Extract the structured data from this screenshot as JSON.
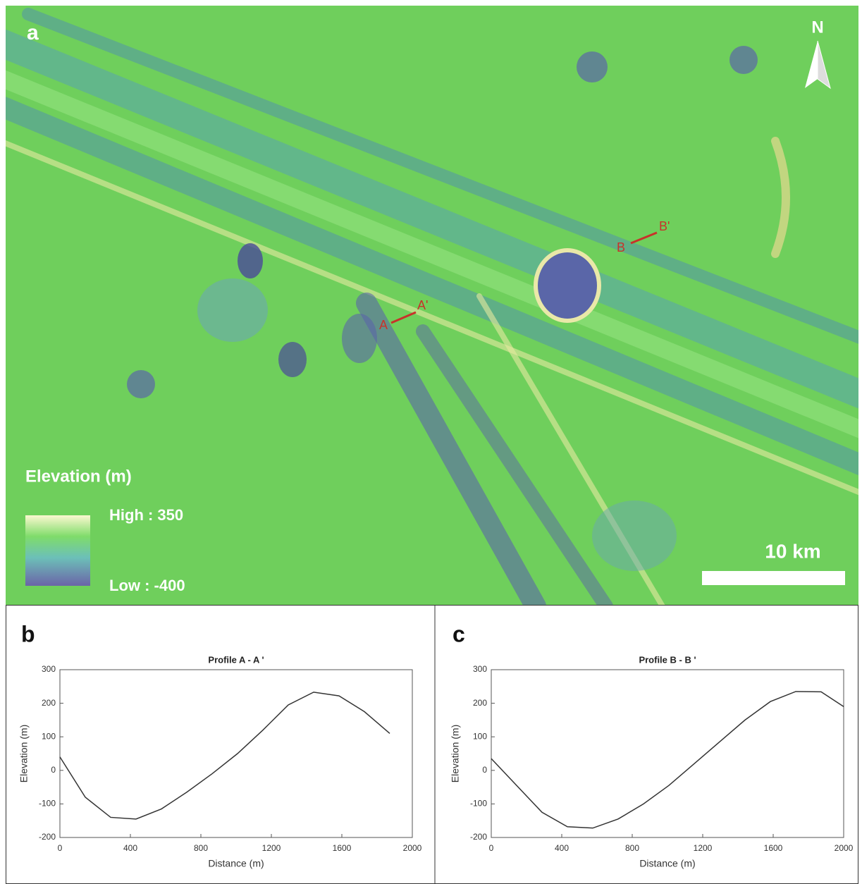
{
  "map": {
    "panel_label": "a",
    "north": "N",
    "legend_title": "Elevation (m)",
    "legend_high": "High : 350",
    "legend_low": "Low : -400",
    "scale_bar": "10 km",
    "profile_a_start": "A",
    "profile_a_end": "A'",
    "profile_b_start": "B",
    "profile_b_end": "B'"
  },
  "chart_data": [
    {
      "type": "line",
      "panel_label": "b",
      "title": "Profile A - A '",
      "x_label": "Distance (m)",
      "y_label": "Elevation (m)",
      "color": "#333333",
      "x": [
        0,
        144,
        288,
        432,
        576,
        720,
        864,
        1008,
        1152,
        1296,
        1440,
        1584,
        1728,
        1872
      ],
      "values": [
        40,
        -80,
        -140,
        -145,
        -115,
        -65,
        -10,
        50,
        120,
        195,
        233,
        222,
        175,
        110
      ],
      "xlim": [
        0,
        2000
      ],
      "xticks": [
        0,
        400,
        800,
        1200,
        1600,
        2000
      ],
      "ylim": [
        -200,
        300
      ],
      "yticks": [
        -200,
        -100,
        0,
        100,
        200,
        300
      ]
    },
    {
      "type": "line",
      "panel_label": "c",
      "title": "Profile B - B '",
      "x_label": "Distance (m)",
      "y_label": "Elevation (m)",
      "color": "#333333",
      "x": [
        0,
        144,
        288,
        432,
        576,
        720,
        864,
        1008,
        1152,
        1296,
        1440,
        1584,
        1728,
        1872,
        2000
      ],
      "values": [
        35,
        -45,
        -125,
        -168,
        -172,
        -145,
        -100,
        -45,
        20,
        85,
        150,
        205,
        235,
        234,
        190
      ],
      "xlim": [
        0,
        2000
      ],
      "xticks": [
        0,
        400,
        800,
        1200,
        1600,
        2000
      ],
      "ylim": [
        -200,
        300
      ],
      "yticks": [
        -200,
        -100,
        0,
        100,
        200,
        300
      ]
    }
  ]
}
